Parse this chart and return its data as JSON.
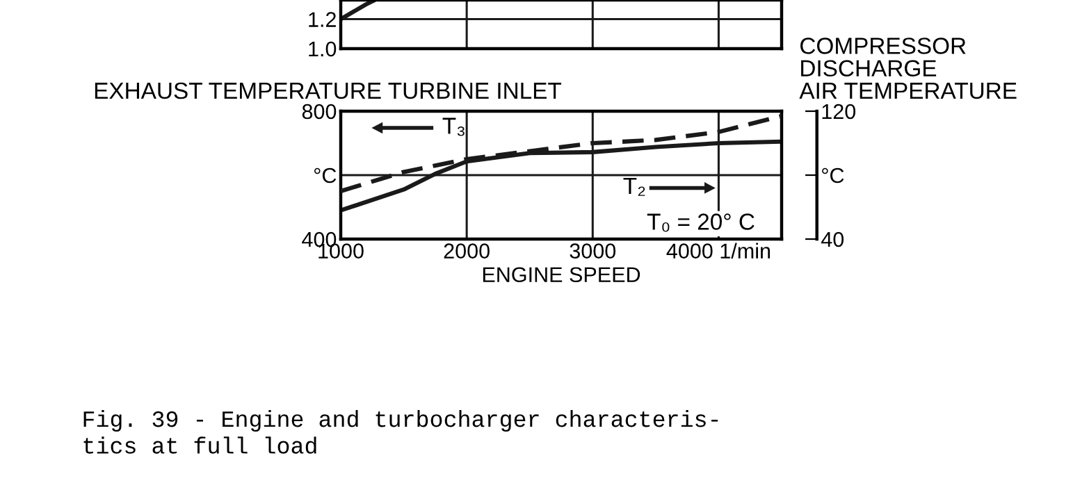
{
  "chart_data": [
    {
      "type": "line",
      "x": [
        1000,
        1100,
        1200,
        1270
      ],
      "xlim": [
        1000,
        4500
      ],
      "ylim": [
        1.0,
        1.33
      ],
      "xticks": [
        1000,
        2000,
        3000,
        4000
      ],
      "yticks": [
        {
          "value": 1.0,
          "label": "1.0"
        },
        1.2
      ],
      "tick_labels": "y",
      "grid": true,
      "series": [
        {
          "color": "#1a1a1a",
          "values": [
            1.2,
            1.25,
            1.3,
            1.33
          ],
          "line_style": "solid"
        }
      ]
    },
    {
      "type": "line",
      "x": [
        1000,
        1500,
        1750,
        2000,
        2500,
        3000,
        3500,
        4000,
        4500
      ],
      "xlim": [
        1000,
        4500
      ],
      "ylim": [
        400,
        800
      ],
      "y2lim": [
        40,
        120
      ],
      "xticks": [
        1000,
        2000,
        3000,
        {
          "value": 4000,
          "label": "4000 1/min"
        }
      ],
      "yticks": [
        400,
        {
          "value": 600,
          "label": "°C"
        },
        800
      ],
      "y2ticks": [
        40,
        {
          "value": 80,
          "label": "°C"
        },
        120
      ],
      "grid": true,
      "xlabel": "ENGINE SPEED",
      "ylabel": "EXHAUST TEMPERATURE TURBINE INLET",
      "y2label": "COMPRESSOR\nDISCHARGE\nAIR TEMPERATURE",
      "series": [
        {
          "color": "#1a1a1a",
          "line_style": "solid",
          "values": [
            490,
            555,
            604,
            643,
            669,
            672,
            688,
            700,
            705
          ]
        },
        {
          "color": "#1a1a1a",
          "line_style": "dashed",
          "axis": "y2",
          "values": [
            70,
            82,
            86,
            90,
            95,
            100,
            102,
            107,
            117
          ]
        }
      ],
      "annotations": [
        "T₃",
        "T₂",
        "T₀ = 20° C",
        "Fig. 39 - Engine and turbocharger characteris-\ntics at full load"
      ]
    }
  ]
}
